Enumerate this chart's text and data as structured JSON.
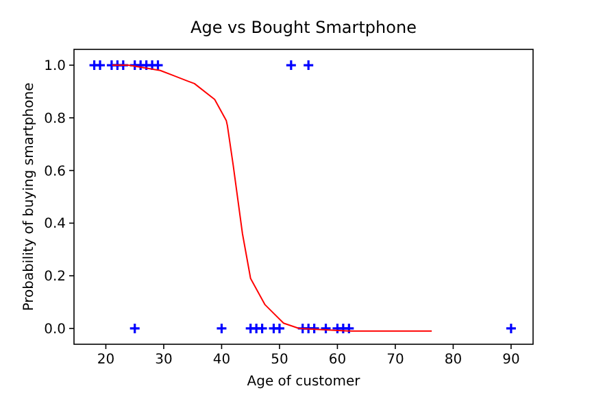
{
  "chart_data": {
    "type": "scatter",
    "title": "Age vs Bought Smartphone",
    "xlabel": "Age of customer",
    "ylabel": "Probability of buying smartphone",
    "xlim": [
      14.5,
      93.8
    ],
    "ylim": [
      -0.06,
      1.06
    ],
    "xticks": [
      20,
      30,
      40,
      50,
      60,
      70,
      80,
      90
    ],
    "yticks": [
      {
        "value": 0,
        "label": "0.0"
      },
      {
        "value": 0.2,
        "label": "0.2"
      },
      {
        "value": 0.4,
        "label": "0.4"
      },
      {
        "value": 0.6,
        "label": "0.6"
      },
      {
        "value": 0.8,
        "label": "0.8"
      },
      {
        "value": 1,
        "label": "1.0"
      }
    ],
    "marker": "cross",
    "grid": false,
    "series": [
      {
        "color": "#0000ff",
        "x": [
          18,
          19,
          21,
          22,
          23,
          25,
          26,
          27,
          28,
          29,
          52,
          55
        ],
        "values": [
          1,
          1,
          1,
          1,
          1,
          1,
          1,
          1,
          1,
          1,
          1,
          1
        ]
      },
      {
        "color": "#0000ff",
        "x": [
          25,
          40,
          45,
          46,
          47,
          49,
          50,
          54,
          55,
          56,
          58,
          60,
          61,
          62,
          90
        ],
        "values": [
          0,
          0,
          0,
          0,
          0,
          0,
          0,
          0,
          0,
          0,
          0,
          0,
          0,
          0,
          0
        ]
      },
      {
        "type": "line",
        "color": "#ff0000",
        "marker": "none",
        "x": [
          21.1,
          23.9,
          29.4,
          34.1,
          35.3,
          38.8,
          40.8,
          41,
          42,
          43.6,
          45,
          47.5,
          50.7,
          53.4,
          62.5,
          76.3
        ],
        "values": [
          1,
          1,
          0.98,
          0.94,
          0.93,
          0.87,
          0.79,
          0.77,
          0.62,
          0.36,
          0.19,
          0.09,
          0.02,
          0,
          -0.01,
          -0.01
        ]
      }
    ]
  }
}
